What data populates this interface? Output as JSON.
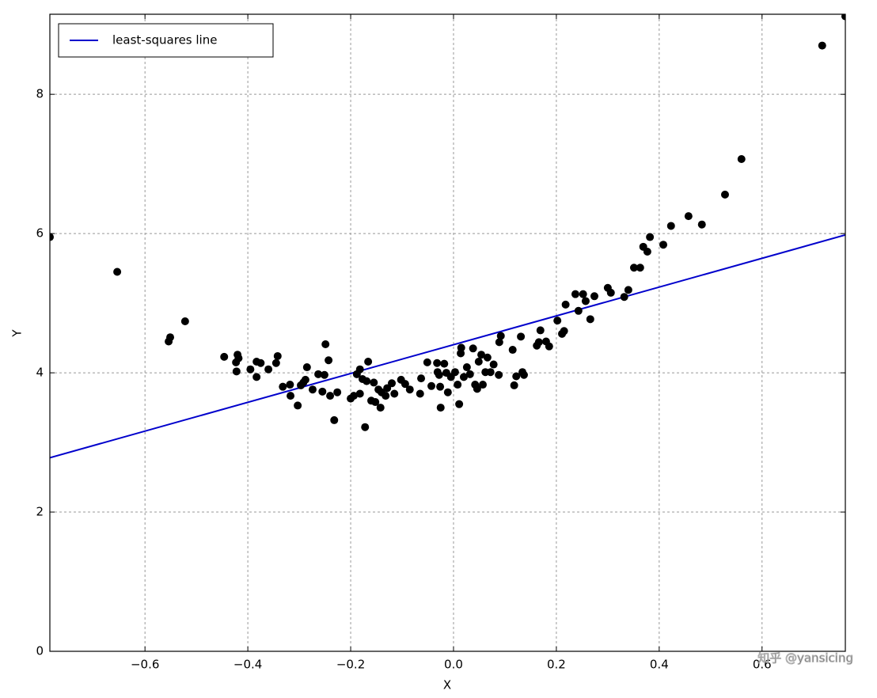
{
  "chart_data": {
    "type": "scatter",
    "xlabel": "X",
    "ylabel": "Y",
    "watermark": "知乎 @yansicing",
    "xlim": [
      -0.785,
      0.762
    ],
    "ylim": [
      0,
      9.15
    ],
    "xticks": [
      {
        "value": -0.6,
        "label": "−0.6"
      },
      {
        "value": -0.4,
        "label": "−0.4"
      },
      {
        "value": -0.2,
        "label": "−0.2"
      },
      {
        "value": 0,
        "label": "0.0"
      },
      {
        "value": 0.2,
        "label": "0.2"
      },
      {
        "value": 0.4,
        "label": "0.4"
      },
      {
        "value": 0.6,
        "label": "0.6"
      }
    ],
    "yticks": [
      0,
      2,
      4,
      6,
      8
    ],
    "grid": true,
    "legend": "upper left",
    "series": [
      {
        "name": "least-squares line",
        "color": "#0000cc",
        "x": [
          -0.785,
          0.762
        ],
        "values": [
          2.78,
          5.98
        ]
      }
    ],
    "points": {
      "color": "#000000",
      "x": [
        -0.785,
        -0.654,
        -0.554,
        -0.551,
        -0.522,
        -0.446,
        -0.423,
        -0.42,
        -0.422,
        -0.418,
        -0.395,
        -0.383,
        -0.375,
        -0.383,
        -0.36,
        -0.345,
        -0.342,
        -0.332,
        -0.318,
        -0.317,
        -0.303,
        -0.297,
        -0.292,
        -0.288,
        -0.285,
        -0.274,
        -0.263,
        -0.255,
        -0.251,
        -0.249,
        -0.243,
        -0.24,
        -0.232,
        -0.226,
        -0.2,
        -0.194,
        -0.188,
        -0.182,
        -0.177,
        -0.182,
        -0.172,
        -0.169,
        -0.166,
        -0.16,
        -0.155,
        -0.152,
        -0.146,
        -0.142,
        -0.14,
        -0.132,
        -0.129,
        -0.12,
        -0.115,
        -0.102,
        -0.094,
        -0.085,
        -0.065,
        -0.063,
        -0.051,
        -0.043,
        -0.032,
        -0.031,
        -0.028,
        -0.025,
        -0.026,
        -0.018,
        -0.014,
        -0.011,
        -0.005,
        0.003,
        0.008,
        0.011,
        0.014,
        0.015,
        0.02,
        0.026,
        0.032,
        0.038,
        0.042,
        0.046,
        0.049,
        0.054,
        0.057,
        0.062,
        0.066,
        0.072,
        0.078,
        0.088,
        0.089,
        0.092,
        0.115,
        0.118,
        0.122,
        0.131,
        0.134,
        0.137,
        0.162,
        0.166,
        0.169,
        0.18,
        0.186,
        0.202,
        0.211,
        0.215,
        0.218,
        0.237,
        0.243,
        0.252,
        0.257,
        0.266,
        0.274,
        0.3,
        0.306,
        0.332,
        0.34,
        0.351,
        0.363,
        0.369,
        0.377,
        0.382,
        0.408,
        0.423,
        0.457,
        0.483,
        0.528,
        0.56,
        0.717,
        0.762
      ],
      "values": [
        5.95,
        5.45,
        4.45,
        4.51,
        4.74,
        4.23,
        4.15,
        4.26,
        4.02,
        4.21,
        4.05,
        4.16,
        4.14,
        3.94,
        4.05,
        4.14,
        4.24,
        3.8,
        3.83,
        3.67,
        3.53,
        3.82,
        3.86,
        3.9,
        4.08,
        3.76,
        3.98,
        3.73,
        3.97,
        4.41,
        4.18,
        3.67,
        3.32,
        3.72,
        3.63,
        3.67,
        3.98,
        4.05,
        3.91,
        3.7,
        3.22,
        3.88,
        4.16,
        3.6,
        3.86,
        3.58,
        3.76,
        3.5,
        3.72,
        3.67,
        3.78,
        3.85,
        3.7,
        3.9,
        3.84,
        3.76,
        3.7,
        3.92,
        4.15,
        3.81,
        4.14,
        4.01,
        3.97,
        3.5,
        3.8,
        4.13,
        4.0,
        3.72,
        3.94,
        4.01,
        3.83,
        3.55,
        4.28,
        4.36,
        3.94,
        4.08,
        3.98,
        4.35,
        3.83,
        3.77,
        4.16,
        4.26,
        3.83,
        4.01,
        4.22,
        4.01,
        4.12,
        3.97,
        4.44,
        4.53,
        4.33,
        3.82,
        3.95,
        4.52,
        4.01,
        3.97,
        4.39,
        4.44,
        4.61,
        4.45,
        4.38,
        4.75,
        4.56,
        4.6,
        4.98,
        5.13,
        4.89,
        5.13,
        5.03,
        4.77,
        5.1,
        5.22,
        5.15,
        5.09,
        5.19,
        5.51,
        5.51,
        5.81,
        5.74,
        5.95,
        5.84,
        6.11,
        6.25,
        6.13,
        6.56,
        7.07,
        8.7,
        9.12
      ]
    }
  }
}
